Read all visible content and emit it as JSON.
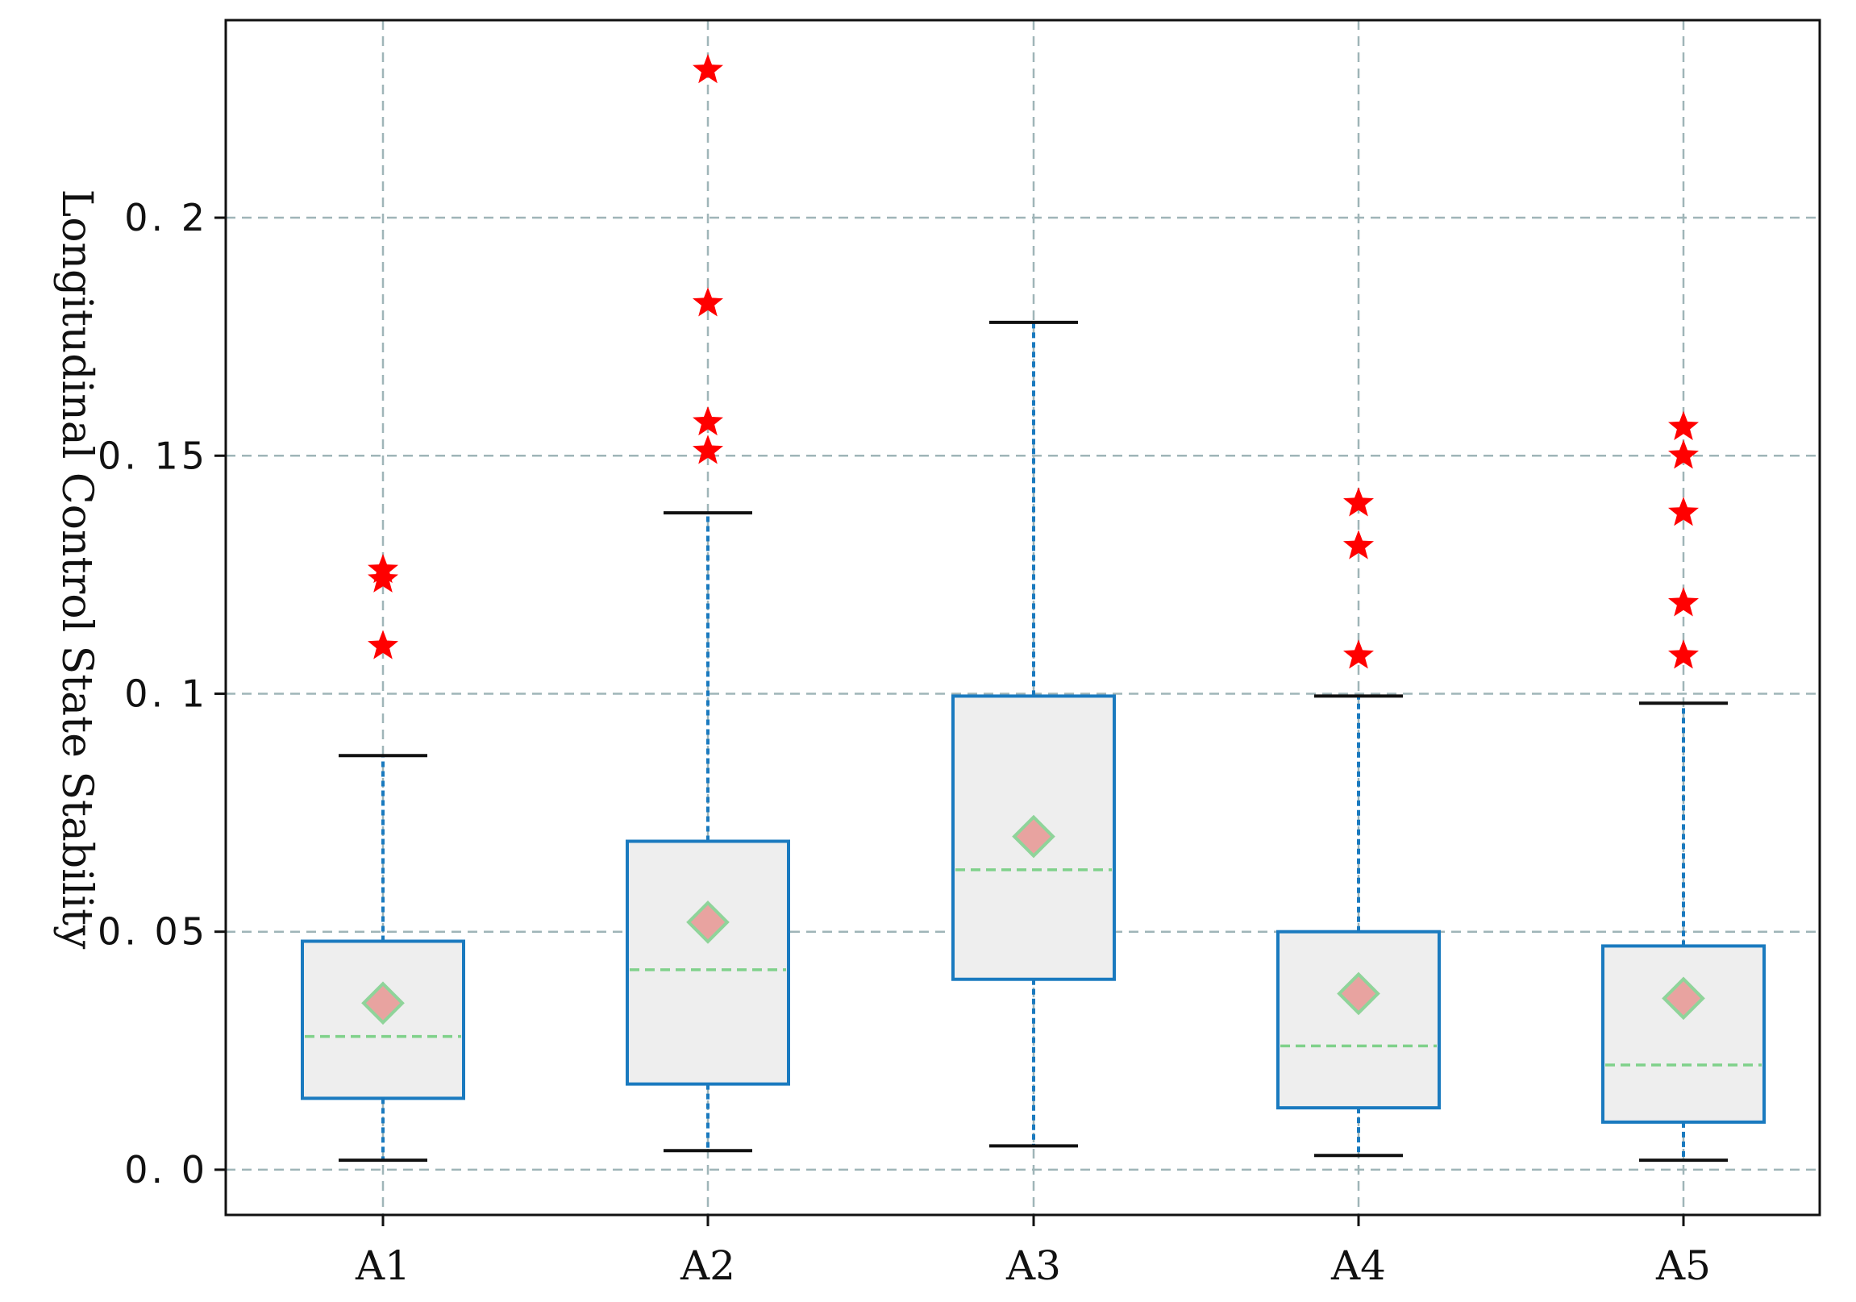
{
  "chart_data": {
    "type": "box",
    "title": "",
    "xlabel": "",
    "ylabel": "Longitudinal Control State Stability",
    "categories": [
      "A1",
      "A2",
      "A3",
      "A4",
      "A5"
    ],
    "ylim": [
      -0.0095,
      0.2415
    ],
    "yticks": [
      0.0,
      0.05,
      0.1,
      0.15,
      0.2
    ],
    "ytick_labels": [
      "0. 0",
      "0. 05",
      "0. 1",
      "0. 15",
      "0. 2"
    ],
    "grid": true,
    "boxes": [
      {
        "name": "A1",
        "whislo": 0.002,
        "q1": 0.015,
        "med": 0.028,
        "q3": 0.048,
        "whishi": 0.087,
        "mean": 0.035,
        "fliers": [
          0.11,
          0.124,
          0.126
        ]
      },
      {
        "name": "A2",
        "whislo": 0.004,
        "q1": 0.018,
        "med": 0.042,
        "q3": 0.069,
        "whishi": 0.138,
        "mean": 0.052,
        "fliers": [
          0.151,
          0.157,
          0.182,
          0.231
        ]
      },
      {
        "name": "A3",
        "whislo": 0.005,
        "q1": 0.04,
        "med": 0.063,
        "q3": 0.0995,
        "whishi": 0.178,
        "mean": 0.07,
        "fliers": []
      },
      {
        "name": "A4",
        "whislo": 0.003,
        "q1": 0.013,
        "med": 0.026,
        "q3": 0.05,
        "whishi": 0.0995,
        "mean": 0.037,
        "fliers": [
          0.108,
          0.131,
          0.14
        ]
      },
      {
        "name": "A5",
        "whislo": 0.002,
        "q1": 0.01,
        "med": 0.022,
        "q3": 0.047,
        "whishi": 0.098,
        "mean": 0.036,
        "fliers": [
          0.108,
          0.119,
          0.138,
          0.15,
          0.156
        ]
      }
    ],
    "colors": {
      "box_edge": "#1a7abf",
      "box_fill": "#eeeeee",
      "whisker": "#1a7abf",
      "cap": "#111111",
      "median": "#7fd18a",
      "mean_fill": "#e8a3a0",
      "mean_edge": "#8fd49a",
      "flier": "#ff0000",
      "grid": "#9fb5b8",
      "axes": "#111111"
    }
  }
}
